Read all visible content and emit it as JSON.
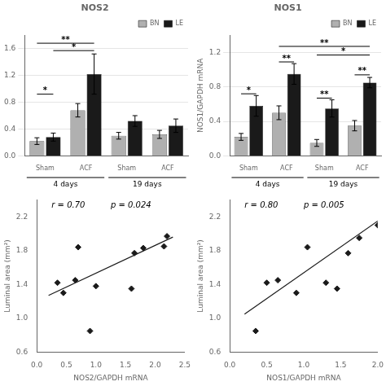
{
  "chart_data": [
    {
      "type": "bar",
      "title": "NOS2",
      "categories": [
        "Sham",
        "ACF",
        "Sham",
        "ACF"
      ],
      "groups": [
        {
          "label": "4 days",
          "categories": [
            0,
            1
          ]
        },
        {
          "label": "19 days",
          "categories": [
            2,
            3
          ]
        }
      ],
      "series": [
        {
          "name": "BN",
          "color": "#b0b0b0",
          "values": [
            0.22,
            0.68,
            0.3,
            0.32
          ],
          "errors": [
            0.05,
            0.1,
            0.05,
            0.06
          ]
        },
        {
          "name": "LE",
          "color": "#1a1a1a",
          "values": [
            0.28,
            1.22,
            0.52,
            0.45
          ],
          "errors": [
            0.06,
            0.3,
            0.08,
            0.1
          ]
        }
      ],
      "ylim": [
        0,
        1.8
      ],
      "yticks": [
        {
          "value": 0,
          "label": "0.0"
        },
        0.4,
        0.8,
        1.2,
        1.6
      ],
      "grid": true,
      "legend": "upper right",
      "annotations": [
        {
          "text": "*",
          "y": 0.92,
          "from": {
            "category": 0,
            "series": "BN"
          },
          "to": {
            "category": 0,
            "series": "LE"
          }
        },
        {
          "text": "**",
          "y": 1.68,
          "from": {
            "category": 0,
            "series": "BN"
          },
          "to": {
            "category": 1,
            "series": "LE"
          }
        },
        {
          "text": "*",
          "y": 1.57,
          "from": {
            "category": 0,
            "series": "LE"
          },
          "to": {
            "category": 1,
            "series": "LE"
          }
        }
      ]
    },
    {
      "type": "bar",
      "title": "NOS1",
      "ylabel": "NOS1/GAPDH mRNA",
      "categories": [
        "Sham",
        "ACF",
        "Sham",
        "ACF"
      ],
      "groups": [
        {
          "label": "4 days",
          "categories": [
            0,
            1
          ]
        },
        {
          "label": "19 days",
          "categories": [
            2,
            3
          ]
        }
      ],
      "series": [
        {
          "name": "BN",
          "color": "#b0b0b0",
          "values": [
            0.22,
            0.5,
            0.15,
            0.35
          ],
          "errors": [
            0.04,
            0.08,
            0.04,
            0.06
          ]
        },
        {
          "name": "LE",
          "color": "#1a1a1a",
          "values": [
            0.58,
            0.95,
            0.55,
            0.85
          ],
          "errors": [
            0.12,
            0.12,
            0.1,
            0.06
          ]
        }
      ],
      "ylim": [
        0,
        1.4
      ],
      "yticks": [
        {
          "value": 0,
          "label": "0.0"
        },
        0.4,
        0.8,
        1.2
      ],
      "grid": true,
      "legend": "upper right",
      "annotations": [
        {
          "text": "*",
          "y": 0.72,
          "from": {
            "category": 0,
            "series": "BN"
          },
          "to": {
            "category": 0,
            "series": "LE"
          }
        },
        {
          "text": "**",
          "y": 1.09,
          "from": {
            "category": 1,
            "series": "BN"
          },
          "to": {
            "category": 1,
            "series": "LE"
          }
        },
        {
          "text": "**",
          "y": 0.67,
          "from": {
            "category": 2,
            "series": "BN"
          },
          "to": {
            "category": 2,
            "series": "LE"
          }
        },
        {
          "text": "**",
          "y": 0.94,
          "from": {
            "category": 3,
            "series": "BN"
          },
          "to": {
            "category": 3,
            "series": "LE"
          }
        },
        {
          "text": "**",
          "y": 1.27,
          "from": {
            "category": 1,
            "series": "BN"
          },
          "to": {
            "category": 3,
            "series": "LE"
          }
        },
        {
          "text": "*",
          "y": 1.17,
          "from": {
            "category": 2,
            "series": "BN"
          },
          "to": {
            "category": 3,
            "series": "LE"
          }
        }
      ]
    },
    {
      "type": "scatter",
      "xlabel": "NOS2/GAPDH mRNA",
      "ylabel": "Luminal area (mm²)",
      "series": [
        {
          "type": "scatter",
          "color": "#1a1a1a",
          "marker": "diamond",
          "x": [
            0.35,
            0.45,
            0.65,
            0.7,
            0.9,
            1.0,
            1.6,
            1.65,
            1.8,
            2.15,
            2.2
          ],
          "values": [
            1.42,
            1.3,
            1.45,
            1.84,
            0.85,
            1.38,
            1.35,
            1.77,
            1.83,
            1.85,
            1.97
          ]
        },
        {
          "type": "line",
          "color": "#1a1a1a",
          "x": [
            0.2,
            2.3
          ],
          "values": [
            1.27,
            1.96
          ]
        }
      ],
      "xlim": [
        0,
        2.5
      ],
      "ylim": [
        0.6,
        2.4
      ],
      "xticks": [
        {
          "value": 0,
          "label": "0.0"
        },
        0.5,
        {
          "value": 1,
          "label": "1.0"
        },
        1.5,
        {
          "value": 2,
          "label": "2.0"
        },
        2.5
      ],
      "yticks": [
        0.6,
        {
          "value": 1,
          "label": "1.0"
        },
        1.4,
        1.8,
        2.2
      ],
      "grid": false,
      "annotations": [
        {
          "text": "r = 0.70"
        },
        {
          "text": "p = 0.024"
        }
      ]
    },
    {
      "type": "scatter",
      "xlabel": "NOS1/GAPDH mRNA",
      "ylabel": "Luminal area (mm²)",
      "series": [
        {
          "type": "scatter",
          "color": "#1a1a1a",
          "marker": "diamond",
          "x": [
            0.35,
            0.5,
            0.65,
            0.9,
            1.05,
            1.3,
            1.45,
            1.6,
            1.75,
            2.0
          ],
          "values": [
            0.85,
            1.42,
            1.45,
            1.3,
            1.84,
            1.42,
            1.35,
            1.77,
            1.95,
            2.1
          ]
        },
        {
          "type": "line",
          "color": "#1a1a1a",
          "x": [
            0.2,
            2.0
          ],
          "values": [
            1.05,
            2.15
          ]
        }
      ],
      "xlim": [
        0,
        2.0
      ],
      "ylim": [
        0.6,
        2.4
      ],
      "xticks": [
        {
          "value": 0,
          "label": "0.0"
        },
        0.5,
        {
          "value": 1,
          "label": "1.0"
        },
        1.5,
        {
          "value": 2,
          "label": "2.0"
        }
      ],
      "yticks": [
        0.6,
        {
          "value": 1,
          "label": "1.0"
        },
        1.4,
        1.8,
        2.2
      ],
      "grid": false,
      "annotations": [
        {
          "text": "r = 0.80"
        },
        {
          "text": "p = 0.005"
        }
      ]
    }
  ]
}
